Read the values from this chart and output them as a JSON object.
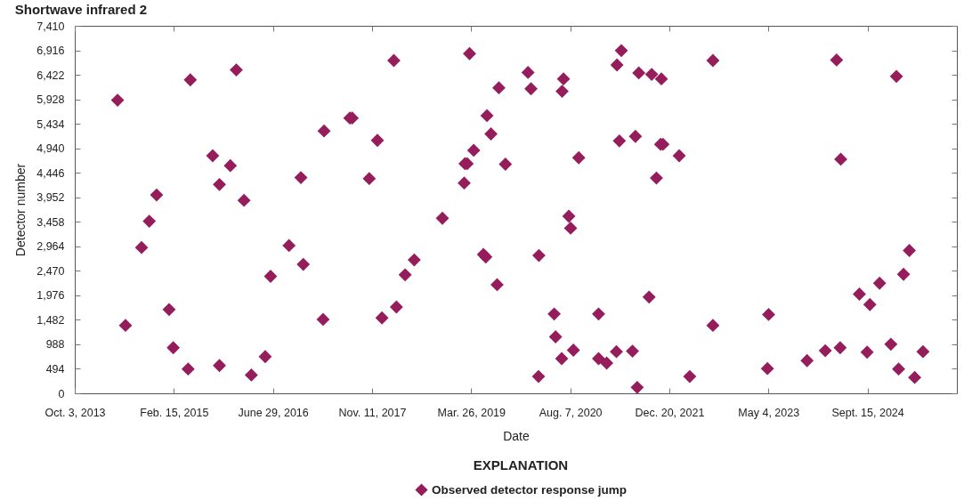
{
  "chart_data": {
    "type": "scatter",
    "title": "Shortwave infrared 2",
    "xlabel": "Date",
    "ylabel": "Detector number",
    "legend_title": "EXPLANATION",
    "legend": "bottom",
    "marker": "diamond",
    "xlim": [
      "2013-10-03",
      "2025-12-10"
    ],
    "xticks": [
      {
        "value": "2013-10-03",
        "label": "Oct. 3, 2013"
      },
      {
        "value": "2015-02-15",
        "label": "Feb. 15, 2015"
      },
      {
        "value": "2016-06-29",
        "label": "June 29, 2016"
      },
      {
        "value": "2017-11-11",
        "label": "Nov. 11, 2017"
      },
      {
        "value": "2019-03-26",
        "label": "Mar. 26, 2019"
      },
      {
        "value": "2020-08-07",
        "label": "Aug. 7, 2020"
      },
      {
        "value": "2021-12-20",
        "label": "Dec. 20, 2021"
      },
      {
        "value": "2023-05-04",
        "label": "May 4, 2023"
      },
      {
        "value": "2024-09-15",
        "label": "Sept. 15, 2024"
      }
    ],
    "ylim": [
      0,
      7410
    ],
    "yticks": [
      0,
      494,
      988,
      {
        "value": 1482,
        "label": "1,482"
      },
      {
        "value": 1976,
        "label": "1,976"
      },
      {
        "value": 2470,
        "label": "2,470"
      },
      {
        "value": 2964,
        "label": "2,964"
      },
      {
        "value": 3458,
        "label": "3,458"
      },
      {
        "value": 3952,
        "label": "3,952"
      },
      {
        "value": 4446,
        "label": "4,446"
      },
      {
        "value": 4940,
        "label": "4,940"
      },
      {
        "value": 5434,
        "label": "5,434"
      },
      {
        "value": 5928,
        "label": "5,928"
      },
      {
        "value": 6422,
        "label": "6,422"
      },
      {
        "value": 6916,
        "label": "6,916"
      },
      {
        "value": 7410,
        "label": "7,410"
      }
    ],
    "series": [
      {
        "name": "Observed detector response jump",
        "color": "#961d5c",
        "x": [
          "2014-05-07",
          "2014-06-16",
          "2014-09-05",
          "2014-10-14",
          "2014-11-20",
          "2015-01-22",
          "2015-02-12",
          "2015-04-28",
          "2015-05-09",
          "2015-08-30",
          "2015-10-03",
          "2015-10-03",
          "2015-11-27",
          "2015-12-27",
          "2016-02-04",
          "2016-03-12",
          "2016-05-21",
          "2016-06-17",
          "2016-09-18",
          "2016-11-17",
          "2016-11-29",
          "2017-03-09",
          "2017-03-14",
          "2017-07-22",
          "2017-08-03",
          "2017-10-28",
          "2017-12-08",
          "2017-12-31",
          "2018-03-01",
          "2018-03-14",
          "2018-04-27",
          "2018-06-12",
          "2018-11-01",
          "2019-02-19",
          "2019-02-23",
          "2019-03-06",
          "2019-03-18",
          "2019-04-08",
          "2019-05-27",
          "2019-06-08",
          "2019-06-14",
          "2019-07-04",
          "2019-08-04",
          "2019-08-13",
          "2019-09-15",
          "2020-01-07",
          "2020-01-22",
          "2020-02-29",
          "2020-03-02",
          "2020-05-18",
          "2020-05-25",
          "2020-06-25",
          "2020-06-27",
          "2020-07-04",
          "2020-07-31",
          "2020-08-09",
          "2020-08-23",
          "2020-09-19",
          "2020-12-28",
          "2020-12-28",
          "2021-02-07",
          "2021-03-28",
          "2021-03-31",
          "2021-04-12",
          "2021-04-22",
          "2021-06-17",
          "2021-07-02",
          "2021-07-11",
          "2021-07-19",
          "2021-09-09",
          "2021-09-22",
          "2021-10-16",
          "2021-11-06",
          "2021-11-10",
          "2021-11-18",
          "2022-02-08",
          "2022-04-02",
          "2022-07-28",
          "2022-07-28",
          "2023-04-29",
          "2023-05-05",
          "2023-11-15",
          "2024-02-15",
          "2024-04-12",
          "2024-04-30",
          "2024-05-03",
          "2024-08-05",
          "2024-09-13",
          "2024-09-27",
          "2024-11-15",
          "2025-01-11",
          "2025-02-08",
          "2025-02-19",
          "2025-03-16",
          "2025-04-14",
          "2025-05-11",
          "2025-06-22"
        ],
        "values": [
          5910,
          1370,
          2940,
          3470,
          4000,
          1690,
          920,
          490,
          6320,
          4790,
          4210,
          560,
          4590,
          6520,
          3890,
          370,
          740,
          2360,
          2980,
          4350,
          2600,
          1490,
          5290,
          5550,
          5550,
          4330,
          5100,
          1520,
          6710,
          1740,
          2390,
          2690,
          3530,
          4240,
          4630,
          4630,
          6850,
          4900,
          2800,
          2750,
          5600,
          5230,
          2190,
          6160,
          4620,
          6470,
          6140,
          340,
          2780,
          1600,
          1140,
          700,
          6090,
          6340,
          3570,
          3330,
          870,
          4750,
          1600,
          700,
          610,
          840,
          6620,
          5090,
          6910,
          850,
          5180,
          120,
          6460,
          1940,
          6430,
          4340,
          5020,
          6340,
          5020,
          4790,
          340,
          1370,
          6710,
          500,
          1590,
          660,
          860,
          6720,
          920,
          4720,
          2000,
          830,
          1790,
          2220,
          990,
          6390,
          490,
          2400,
          2880,
          320,
          840
        ]
      }
    ]
  }
}
